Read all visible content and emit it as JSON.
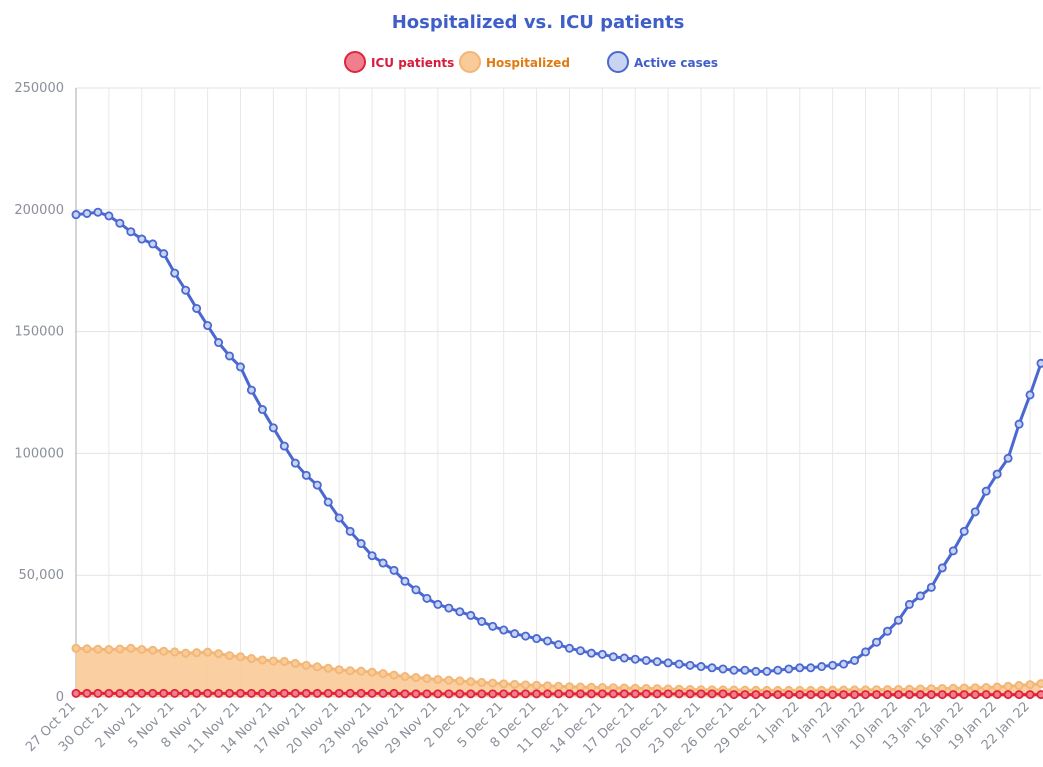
{
  "chart_data": {
    "type": "line",
    "title": "Hospitalized vs. ICU patients",
    "categories": [
      "27 Oct 21",
      null,
      null,
      "30 Oct 21",
      null,
      null,
      "2 Nov 21",
      null,
      null,
      "5 Nov 21",
      null,
      null,
      "8 Nov 21",
      null,
      null,
      "11 Nov 21",
      null,
      null,
      "14 Nov 21",
      null,
      null,
      "17 Nov 21",
      null,
      null,
      "20 Nov 21",
      null,
      null,
      "23 Nov 21",
      null,
      null,
      "26 Nov 21",
      null,
      null,
      "29 Nov 21",
      null,
      null,
      "2 Dec 21",
      null,
      null,
      "5 Dec 21",
      null,
      null,
      "8 Dec 21",
      null,
      null,
      "11 Dec 21",
      null,
      null,
      "14 Dec 21",
      null,
      null,
      "17 Dec 21",
      null,
      null,
      "20 Dec 21",
      null,
      null,
      "23 Dec 21",
      null,
      null,
      "26 Dec 21",
      null,
      null,
      "29 Dec 21",
      null,
      null,
      "1 Jan 22",
      null,
      null,
      "4 Jan 22",
      null,
      null,
      "7 Jan 22",
      null,
      null,
      "10 Jan 22",
      null,
      null,
      "13 Jan 22",
      null,
      null,
      "16 Jan 22",
      null,
      null,
      "19 Jan 22",
      null,
      null,
      "22 Jan 22",
      null
    ],
    "series": [
      {
        "name": "ICU patients",
        "color": "#e0243e",
        "point_fill": "#f07f8e",
        "text_color": "#d81b3a",
        "area": false,
        "values": [
          1500,
          1500,
          1500,
          1500,
          1500,
          1500,
          1500,
          1500,
          1500,
          1500,
          1500,
          1500,
          1500,
          1500,
          1500,
          1500,
          1500,
          1500,
          1500,
          1500,
          1500,
          1500,
          1500,
          1500,
          1500,
          1500,
          1500,
          1500,
          1500,
          1500,
          1300,
          1300,
          1300,
          1300,
          1300,
          1300,
          1300,
          1300,
          1300,
          1300,
          1300,
          1300,
          1300,
          1300,
          1300,
          1300,
          1300,
          1300,
          1300,
          1300,
          1300,
          1300,
          1300,
          1300,
          1300,
          1300,
          1300,
          1300,
          1300,
          1300,
          1000,
          1000,
          1000,
          1000,
          1000,
          1000,
          1000,
          1000,
          1000,
          1000,
          1000,
          1000,
          1000,
          1000,
          1000,
          1000,
          1000,
          1000,
          1000,
          1000,
          1000,
          1000,
          1000,
          1000,
          1000,
          1000,
          1000,
          1000,
          1000
        ]
      },
      {
        "name": "Hospitalized",
        "color": "#f2b676",
        "point_fill": "#f9cb98",
        "text_color": "#e07a12",
        "area": true,
        "values": [
          20000,
          19800,
          19600,
          19500,
          19700,
          20000,
          19500,
          19200,
          18800,
          18500,
          18000,
          18200,
          18400,
          17800,
          17000,
          16500,
          15800,
          15200,
          14800,
          14600,
          13800,
          13000,
          12400,
          11800,
          11200,
          10800,
          10600,
          10200,
          9600,
          9000,
          8400,
          8000,
          7600,
          7200,
          6900,
          6600,
          6300,
          6000,
          5700,
          5400,
          5200,
          5000,
          4800,
          4600,
          4400,
          4200,
          4100,
          4000,
          3900,
          3800,
          3700,
          3600,
          3500,
          3400,
          3300,
          3200,
          3100,
          3000,
          2950,
          2900,
          2850,
          2800,
          2750,
          2700,
          2700,
          2700,
          2700,
          2700,
          2750,
          2800,
          2850,
          2900,
          2950,
          3000,
          3050,
          3100,
          3200,
          3300,
          3400,
          3500,
          3600,
          3700,
          3800,
          3900,
          4100,
          4400,
          4700,
          5100,
          5500
        ]
      },
      {
        "name": "Active cases",
        "color": "#4a68d0",
        "point_fill": "#c9d3f2",
        "text_color": "#3f5ec8",
        "area": false,
        "values": [
          198000,
          198500,
          199000,
          197500,
          194500,
          191000,
          188000,
          186000,
          182000,
          174000,
          167000,
          159500,
          152500,
          145500,
          140000,
          135500,
          126000,
          118000,
          110500,
          103000,
          96000,
          91000,
          87000,
          80000,
          73500,
          68000,
          63000,
          58000,
          55000,
          52000,
          47500,
          44000,
          40500,
          38000,
          36500,
          35000,
          33500,
          31000,
          29000,
          27500,
          26000,
          25000,
          24000,
          23000,
          21500,
          20000,
          19000,
          18000,
          17500,
          16500,
          16000,
          15500,
          15000,
          14500,
          14000,
          13500,
          13000,
          12500,
          12000,
          11500,
          11000,
          11000,
          10500,
          10500,
          11000,
          11500,
          12000,
          12000,
          12500,
          13000,
          13500,
          15000,
          18500,
          22500,
          27000,
          31500,
          38000,
          41500,
          45000,
          53000,
          60000,
          68000,
          76000,
          84500,
          91500,
          98000,
          112000,
          124000,
          137000
        ]
      }
    ],
    "ylim": [
      0,
      250000
    ],
    "yticks": [
      0,
      {
        "value": 50000,
        "label": "50,000"
      },
      100000,
      150000,
      200000,
      250000
    ],
    "grid": true
  }
}
